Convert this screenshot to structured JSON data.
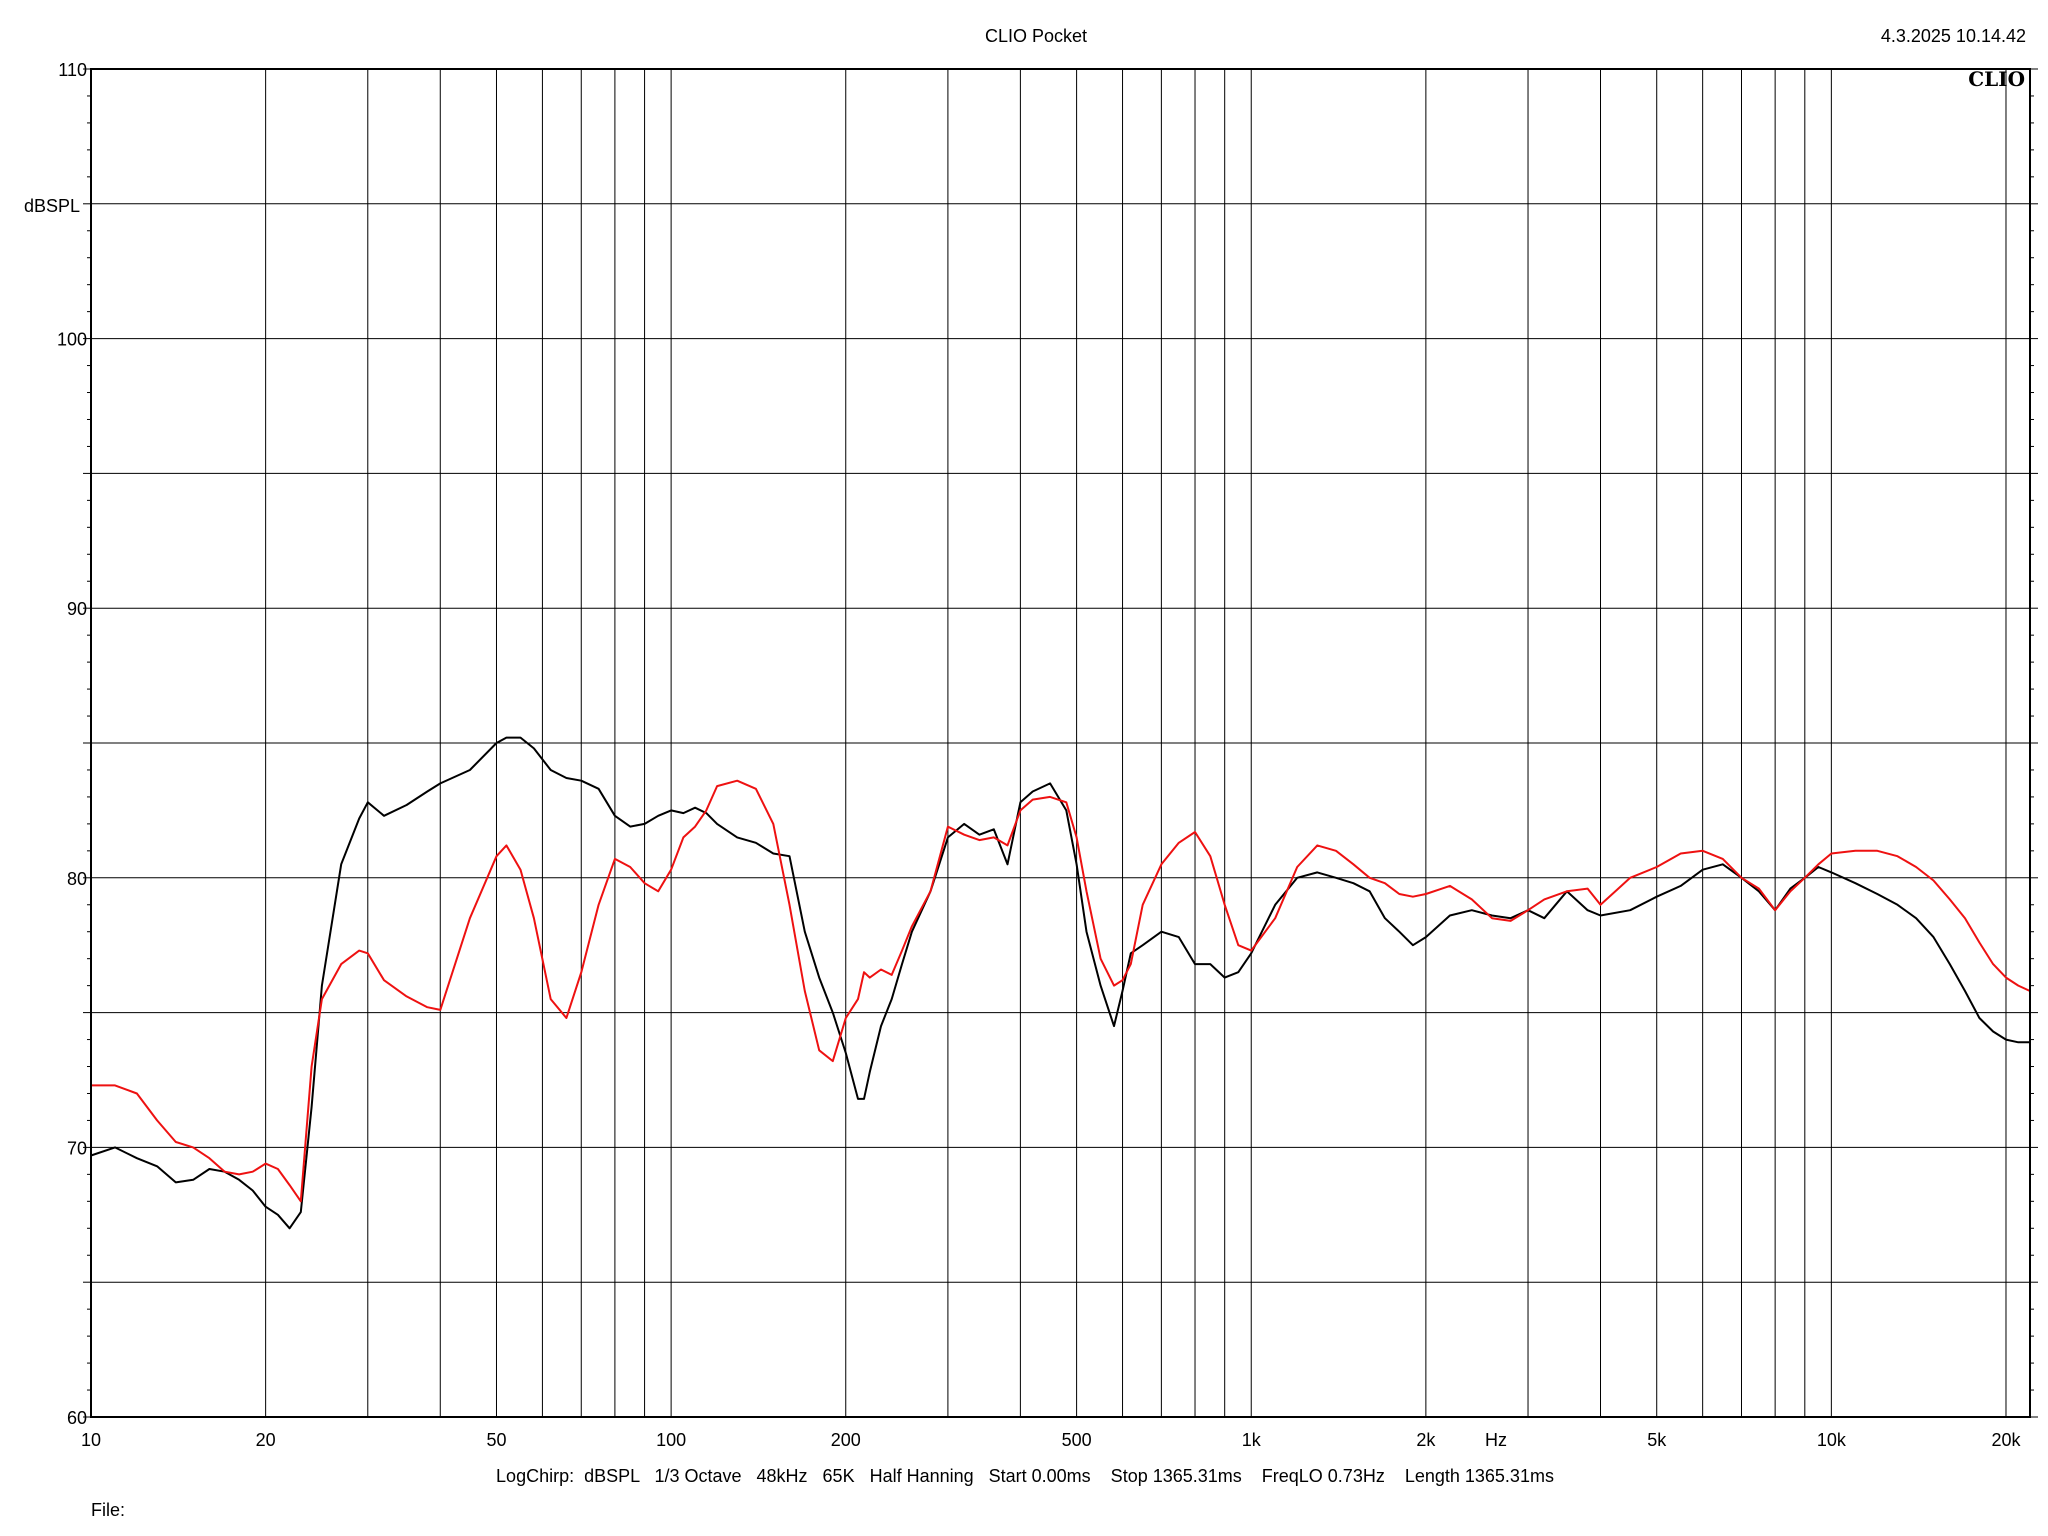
{
  "header": {
    "title": "CLIO Pocket",
    "timestamp": "4.3.2025 10.14.42",
    "logo": "CLIO"
  },
  "footer": {
    "settings": "LogChirp:  dBSPL   1/3 Octave   48kHz   65K   Half Hanning   Start 0.00ms    Stop 1365.31ms    FreqLO 0.73Hz    Length 1365.31ms",
    "file_label": "File:"
  },
  "chart_data": {
    "type": "line",
    "xlabel": "Hz",
    "ylabel": "dBSPL",
    "xscale": "log",
    "xlim": [
      10,
      22000
    ],
    "ylim": [
      60,
      110
    ],
    "x_ticks": [
      {
        "value": 10,
        "label": "10"
      },
      {
        "value": 20,
        "label": "20"
      },
      {
        "value": 50,
        "label": "50"
      },
      {
        "value": 100,
        "label": "100"
      },
      {
        "value": 200,
        "label": "200"
      },
      {
        "value": 500,
        "label": "500"
      },
      {
        "value": 1000,
        "label": "1k"
      },
      {
        "value": 2000,
        "label": "2k"
      },
      {
        "value": 5000,
        "label": "5k"
      },
      {
        "value": 10000,
        "label": "10k"
      },
      {
        "value": 20000,
        "label": "20k"
      }
    ],
    "y_ticks": [
      {
        "value": 60,
        "label": "60"
      },
      {
        "value": 70,
        "label": "70"
      },
      {
        "value": 80,
        "label": "80"
      },
      {
        "value": 90,
        "label": "90"
      },
      {
        "value": 100,
        "label": "100"
      },
      {
        "value": 110,
        "label": "110"
      }
    ],
    "grid": true,
    "series": [
      {
        "color": "#000000",
        "x": [
          10,
          11,
          12,
          13,
          14,
          15,
          16,
          17,
          18,
          19,
          20,
          21,
          22,
          23,
          24,
          25,
          27,
          29,
          30,
          32,
          35,
          38,
          40,
          45,
          50,
          52,
          55,
          58,
          62,
          66,
          70,
          75,
          80,
          85,
          90,
          95,
          100,
          105,
          110,
          115,
          120,
          130,
          140,
          150,
          160,
          170,
          180,
          190,
          200,
          210,
          215,
          220,
          230,
          240,
          250,
          260,
          280,
          300,
          320,
          340,
          360,
          380,
          400,
          420,
          450,
          480,
          500,
          520,
          550,
          580,
          600,
          620,
          650,
          700,
          750,
          800,
          850,
          900,
          950,
          1000,
          1100,
          1200,
          1300,
          1400,
          1500,
          1600,
          1700,
          1800,
          1900,
          2000,
          2200,
          2400,
          2600,
          2800,
          3000,
          3200,
          3500,
          3800,
          4000,
          4500,
          5000,
          5500,
          6000,
          6500,
          7000,
          7500,
          8000,
          8500,
          9000,
          9500,
          10000,
          11000,
          12000,
          13000,
          14000,
          15000,
          16000,
          17000,
          18000,
          19000,
          20000,
          21000,
          22000
        ],
        "values": [
          69.7,
          70.0,
          69.6,
          69.3,
          68.7,
          68.8,
          69.2,
          69.1,
          68.8,
          68.4,
          67.8,
          67.5,
          67.0,
          67.6,
          71.5,
          76.0,
          80.5,
          82.2,
          82.8,
          82.3,
          82.7,
          83.2,
          83.5,
          84.0,
          85.0,
          85.2,
          85.2,
          84.8,
          84.0,
          83.7,
          83.6,
          83.3,
          82.3,
          81.9,
          82.0,
          82.3,
          82.5,
          82.4,
          82.6,
          82.4,
          82.0,
          81.5,
          81.3,
          80.9,
          80.8,
          78.0,
          76.3,
          75.0,
          73.5,
          71.8,
          71.8,
          72.8,
          74.5,
          75.5,
          76.8,
          78.0,
          79.5,
          81.5,
          82.0,
          81.6,
          81.8,
          80.5,
          82.8,
          83.2,
          83.5,
          82.5,
          80.5,
          78.0,
          76.0,
          74.5,
          75.8,
          77.2,
          77.5,
          78.0,
          77.8,
          76.8,
          76.8,
          76.3,
          76.5,
          77.2,
          79.0,
          80.0,
          80.2,
          80.0,
          79.8,
          79.5,
          78.5,
          78.0,
          77.5,
          77.8,
          78.6,
          78.8,
          78.6,
          78.5,
          78.8,
          78.5,
          79.5,
          78.8,
          78.6,
          78.8,
          79.3,
          79.7,
          80.3,
          80.5,
          80.0,
          79.5,
          78.8,
          79.6,
          80.0,
          80.4,
          80.2,
          79.8,
          79.4,
          79.0,
          78.5,
          77.8,
          76.8,
          75.8,
          74.8,
          74.3,
          74.0,
          73.9,
          73.9
        ]
      },
      {
        "color": "#ee1111",
        "x": [
          10,
          11,
          12,
          13,
          14,
          15,
          16,
          17,
          18,
          19,
          20,
          21,
          22,
          23,
          24,
          25,
          27,
          29,
          30,
          32,
          35,
          38,
          40,
          45,
          50,
          52,
          55,
          58,
          62,
          66,
          70,
          75,
          80,
          85,
          90,
          95,
          100,
          105,
          110,
          115,
          120,
          130,
          140,
          150,
          160,
          170,
          180,
          190,
          200,
          210,
          215,
          220,
          230,
          240,
          250,
          260,
          280,
          300,
          320,
          340,
          360,
          380,
          400,
          420,
          450,
          480,
          500,
          520,
          550,
          580,
          600,
          620,
          650,
          700,
          750,
          800,
          850,
          900,
          950,
          1000,
          1100,
          1200,
          1300,
          1400,
          1500,
          1600,
          1700,
          1800,
          1900,
          2000,
          2200,
          2400,
          2600,
          2800,
          3000,
          3200,
          3500,
          3800,
          4000,
          4500,
          5000,
          5500,
          6000,
          6500,
          7000,
          7500,
          8000,
          8500,
          9000,
          9500,
          10000,
          11000,
          12000,
          13000,
          14000,
          15000,
          16000,
          17000,
          18000,
          19000,
          20000,
          21000,
          22000
        ],
        "values": [
          72.3,
          72.3,
          72.0,
          71.0,
          70.2,
          70.0,
          69.6,
          69.1,
          69.0,
          69.1,
          69.4,
          69.2,
          68.6,
          68.0,
          73.0,
          75.5,
          76.8,
          77.3,
          77.2,
          76.2,
          75.6,
          75.2,
          75.1,
          78.5,
          80.8,
          81.2,
          80.3,
          78.5,
          75.5,
          74.8,
          76.5,
          79.0,
          80.7,
          80.4,
          79.8,
          79.5,
          80.3,
          81.5,
          81.9,
          82.5,
          83.4,
          83.6,
          83.3,
          82.0,
          79.0,
          75.8,
          73.6,
          73.2,
          74.8,
          75.5,
          76.5,
          76.3,
          76.6,
          76.4,
          77.3,
          78.2,
          79.5,
          81.9,
          81.6,
          81.4,
          81.5,
          81.2,
          82.5,
          82.9,
          83.0,
          82.8,
          81.5,
          79.5,
          77.0,
          76.0,
          76.2,
          76.8,
          79.0,
          80.5,
          81.3,
          81.7,
          80.8,
          79.0,
          77.5,
          77.3,
          78.5,
          80.4,
          81.2,
          81.0,
          80.5,
          80.0,
          79.8,
          79.4,
          79.3,
          79.4,
          79.7,
          79.2,
          78.5,
          78.4,
          78.8,
          79.2,
          79.5,
          79.6,
          79.0,
          80.0,
          80.4,
          80.9,
          81.0,
          80.7,
          80.0,
          79.6,
          78.8,
          79.5,
          80.0,
          80.5,
          80.9,
          81.0,
          81.0,
          80.8,
          80.4,
          79.9,
          79.2,
          78.5,
          77.6,
          76.8,
          76.3,
          76.0,
          75.8
        ]
      }
    ]
  }
}
